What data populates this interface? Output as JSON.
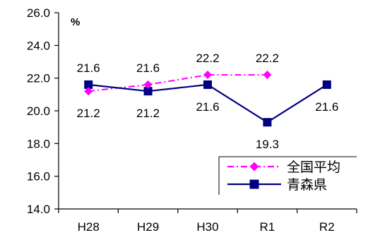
{
  "chart_data": {
    "type": "line",
    "categories": [
      "H28",
      "H29",
      "H30",
      "R1",
      "R2"
    ],
    "ylim": [
      14.0,
      26.0
    ],
    "ytick_step": 2.0,
    "y_unit": "%",
    "grid": false,
    "legend_position": "bottom-right",
    "series": [
      {
        "name": "全国平均",
        "values": [
          21.2,
          21.6,
          22.2,
          22.2,
          null
        ],
        "color": "#ff00ff",
        "marker": "diamond",
        "line_style": "dash-dot",
        "label_position": "above"
      },
      {
        "name": "青森県",
        "values": [
          21.6,
          21.2,
          21.6,
          19.3,
          21.6
        ],
        "color": "#000080",
        "marker": "square",
        "line_style": "solid",
        "label_position": "below"
      }
    ],
    "data_labels": [
      {
        "category": "H28",
        "series": "青森県",
        "text": "21.6",
        "side": "above"
      },
      {
        "category": "H28",
        "series": "全国平均",
        "text": "21.2",
        "side": "below"
      },
      {
        "category": "H29",
        "series": "全国平均",
        "text": "21.6",
        "side": "above"
      },
      {
        "category": "H29",
        "series": "青森県",
        "text": "21.2",
        "side": "below"
      },
      {
        "category": "H30",
        "series": "全国平均",
        "text": "22.2",
        "side": "above"
      },
      {
        "category": "H30",
        "series": "青森県",
        "text": "21.6",
        "side": "below"
      },
      {
        "category": "R1",
        "series": "全国平均",
        "text": "22.2",
        "side": "above"
      },
      {
        "category": "R1",
        "series": "青森県",
        "text": "19.3",
        "side": "below"
      },
      {
        "category": "R2",
        "series": "青森県",
        "text": "21.6",
        "side": "below"
      }
    ]
  }
}
